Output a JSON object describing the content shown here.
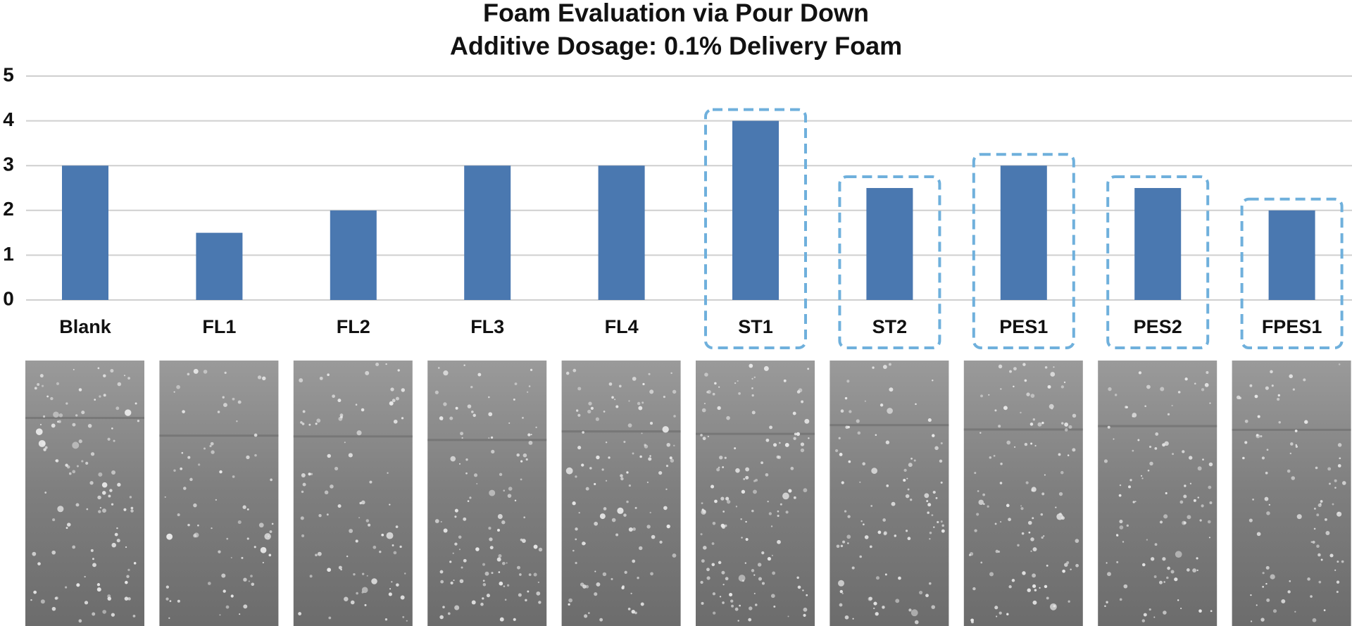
{
  "chart_data": {
    "type": "bar",
    "title": "Foam Evaluation via Pour Down",
    "subtitle": "Additive Dosage: 0.1% Delivery Foam",
    "categories": [
      "Blank",
      "FL1",
      "FL2",
      "FL3",
      "FL4",
      "ST1",
      "ST2",
      "PES1",
      "PES2",
      "FPES1"
    ],
    "values": [
      3,
      1.5,
      2,
      3,
      3,
      4,
      2.5,
      3,
      2.5,
      2
    ],
    "color": "#4a78b0",
    "highlight": [
      false,
      false,
      false,
      false,
      false,
      true,
      true,
      true,
      true,
      true
    ],
    "highlight_color": "#6fb0dc",
    "ylim": [
      0,
      5
    ],
    "yticks": [
      0,
      1,
      2,
      3,
      4,
      5
    ],
    "grid": true
  }
}
